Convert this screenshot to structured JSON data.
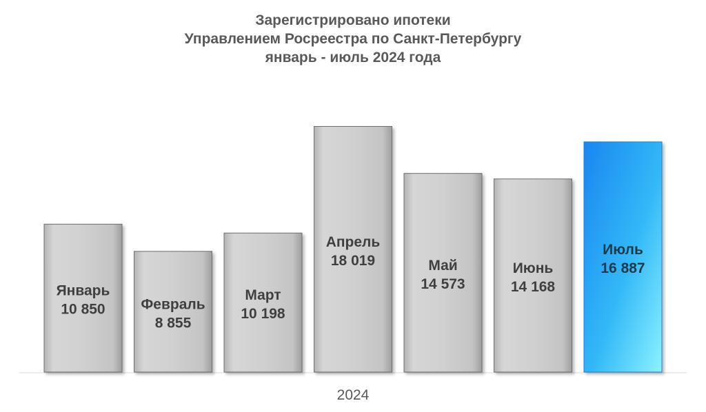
{
  "chart_data": {
    "type": "bar",
    "title": [
      "Зарегистрировано ипотеки",
      "Управлением Росреестра по Санкт-Петербургу",
      "январь - июль 2024 года"
    ],
    "xlabel": "2024",
    "ylabel": "",
    "categories": [
      "Январь",
      "Февраль",
      "Март",
      "Апрель",
      "Май",
      "Июнь",
      "Июль"
    ],
    "values": [
      10850,
      8855,
      10198,
      18019,
      14573,
      14168,
      16887
    ],
    "value_labels": [
      "10 850",
      "8 855",
      "10 198",
      "18 019",
      "14 573",
      "14 168",
      "16 887"
    ],
    "highlight_index": 6,
    "ylim": [
      0,
      18500
    ],
    "grid": false,
    "legend": "none",
    "colors": {
      "bar": "#c8c8c8",
      "bar_edge": "#6e6e6e",
      "highlight": "#1e90ff",
      "highlight_light": "#87eeff",
      "text": "#3f3f3f",
      "axis": "#d9d9d9"
    }
  }
}
